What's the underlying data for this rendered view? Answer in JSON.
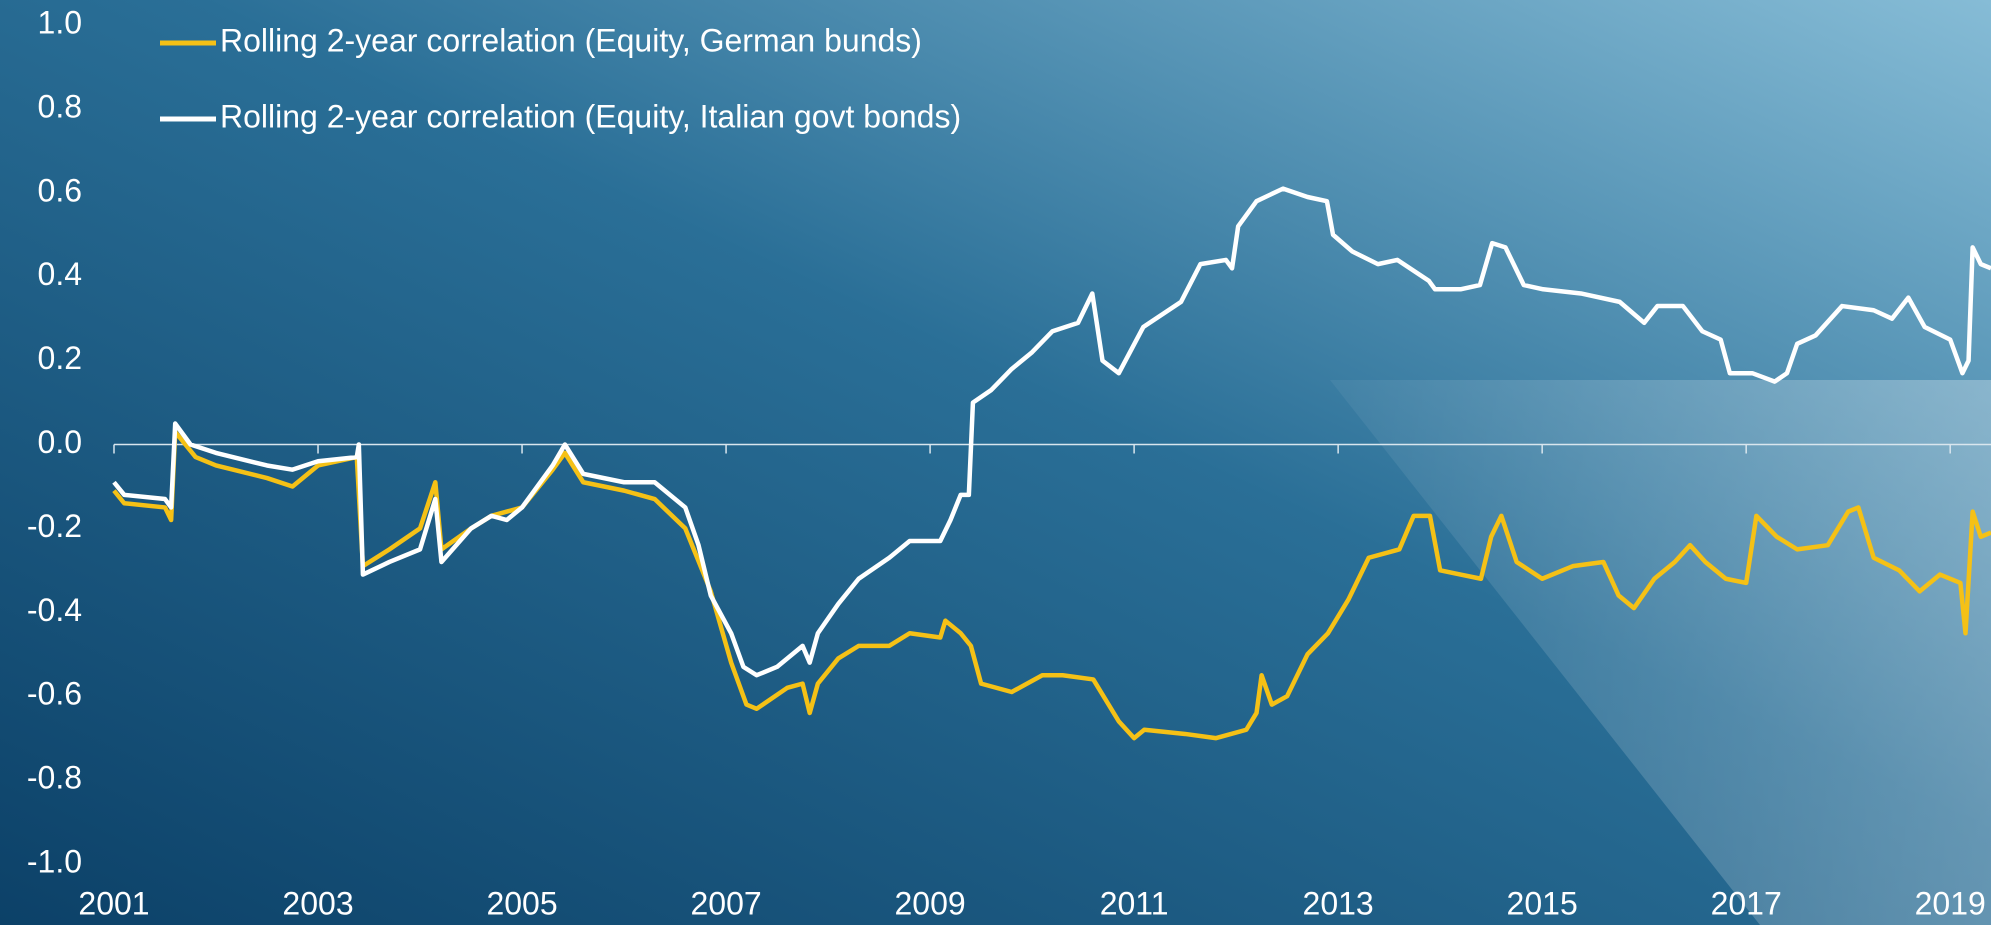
{
  "chart_data": {
    "type": "line",
    "series": [
      {
        "name": "Rolling 2-year correlation (Equity, German bunds)",
        "color": "#f5c116",
        "x": [
          2001.0,
          2001.1,
          2001.5,
          2001.56,
          2001.6,
          2001.8,
          2002.0,
          2002.5,
          2002.75,
          2003.0,
          2003.38,
          2003.44,
          2003.7,
          2004.0,
          2004.15,
          2004.21,
          2004.5,
          2004.7,
          2005.0,
          2005.3,
          2005.42,
          2005.6,
          2006.0,
          2006.3,
          2006.6,
          2006.85,
          2007.05,
          2007.2,
          2007.3,
          2007.6,
          2007.75,
          2007.82,
          2007.9,
          2008.1,
          2008.3,
          2008.6,
          2008.8,
          2009.1,
          2009.15,
          2009.3,
          2009.4,
          2009.5,
          2009.8,
          2010.1,
          2010.3,
          2010.6,
          2010.85,
          2011.0,
          2011.1,
          2011.5,
          2011.8,
          2012.1,
          2012.2,
          2012.25,
          2012.35,
          2012.5,
          2012.7,
          2012.9,
          2013.1,
          2013.3,
          2013.6,
          2013.74,
          2013.9,
          2014.0,
          2014.2,
          2014.4,
          2014.5,
          2014.6,
          2014.75,
          2015.0,
          2015.3,
          2015.6,
          2015.75,
          2015.9,
          2016.1,
          2016.3,
          2016.45,
          2016.6,
          2016.8,
          2017.0,
          2017.1,
          2017.3,
          2017.5,
          2017.8,
          2018.0,
          2018.1,
          2018.25,
          2018.5,
          2018.7,
          2018.9,
          2019.1,
          2019.15,
          2019.22,
          2019.3,
          2019.4
        ],
        "values": [
          -0.11,
          -0.14,
          -0.15,
          -0.18,
          0.03,
          -0.03,
          -0.05,
          -0.08,
          -0.1,
          -0.05,
          -0.03,
          -0.29,
          -0.25,
          -0.2,
          -0.09,
          -0.25,
          -0.2,
          -0.17,
          -0.15,
          -0.06,
          -0.02,
          -0.09,
          -0.11,
          -0.13,
          -0.2,
          -0.35,
          -0.52,
          -0.62,
          -0.63,
          -0.58,
          -0.57,
          -0.64,
          -0.57,
          -0.51,
          -0.48,
          -0.48,
          -0.45,
          -0.46,
          -0.42,
          -0.45,
          -0.48,
          -0.57,
          -0.59,
          -0.55,
          -0.55,
          -0.56,
          -0.66,
          -0.7,
          -0.68,
          -0.69,
          -0.7,
          -0.68,
          -0.64,
          -0.55,
          -0.62,
          -0.6,
          -0.5,
          -0.45,
          -0.37,
          -0.27,
          -0.25,
          -0.17,
          -0.17,
          -0.3,
          -0.31,
          -0.32,
          -0.22,
          -0.17,
          -0.28,
          -0.32,
          -0.29,
          -0.28,
          -0.36,
          -0.39,
          -0.32,
          -0.28,
          -0.24,
          -0.28,
          -0.32,
          -0.33,
          -0.17,
          -0.22,
          -0.25,
          -0.24,
          -0.16,
          -0.15,
          -0.27,
          -0.3,
          -0.35,
          -0.31,
          -0.33,
          -0.45,
          -0.16,
          -0.22,
          -0.21
        ]
      },
      {
        "name": "Rolling 2-year correlation (Equity, Italian govt bonds)",
        "color": "#ffffff",
        "x": [
          2001.0,
          2001.1,
          2001.5,
          2001.56,
          2001.6,
          2001.75,
          2002.0,
          2002.5,
          2002.75,
          2003.0,
          2003.38,
          2003.4,
          2003.44,
          2003.7,
          2004.0,
          2004.15,
          2004.21,
          2004.5,
          2004.7,
          2004.85,
          2005.0,
          2005.3,
          2005.42,
          2005.6,
          2006.0,
          2006.3,
          2006.6,
          2006.73,
          2006.85,
          2007.05,
          2007.17,
          2007.3,
          2007.5,
          2007.75,
          2007.82,
          2007.9,
          2008.1,
          2008.3,
          2008.6,
          2008.8,
          2009.1,
          2009.2,
          2009.3,
          2009.38,
          2009.42,
          2009.6,
          2009.8,
          2010.0,
          2010.2,
          2010.45,
          2010.59,
          2010.69,
          2010.85,
          2011.09,
          2011.46,
          2011.65,
          2011.9,
          2011.96,
          2012.02,
          2012.2,
          2012.46,
          2012.7,
          2012.89,
          2012.95,
          2013.14,
          2013.39,
          2013.58,
          2013.89,
          2013.95,
          2014.2,
          2014.39,
          2014.51,
          2014.64,
          2014.82,
          2015.01,
          2015.38,
          2015.76,
          2016.0,
          2016.13,
          2016.38,
          2016.57,
          2016.75,
          2016.84,
          2017.06,
          2017.28,
          2017.4,
          2017.5,
          2017.68,
          2017.94,
          2018.25,
          2018.43,
          2018.59,
          2018.75,
          2019.0,
          2019.12,
          2019.18,
          2019.22,
          2019.3,
          2019.4
        ],
        "values": [
          -0.09,
          -0.12,
          -0.13,
          -0.15,
          0.05,
          0.0,
          -0.02,
          -0.05,
          -0.06,
          -0.04,
          -0.03,
          0.0,
          -0.31,
          -0.28,
          -0.25,
          -0.13,
          -0.28,
          -0.2,
          -0.17,
          -0.18,
          -0.15,
          -0.05,
          0.0,
          -0.07,
          -0.09,
          -0.09,
          -0.15,
          -0.24,
          -0.36,
          -0.45,
          -0.53,
          -0.55,
          -0.53,
          -0.48,
          -0.52,
          -0.45,
          -0.38,
          -0.32,
          -0.27,
          -0.23,
          -0.23,
          -0.18,
          -0.12,
          -0.12,
          0.1,
          0.13,
          0.18,
          0.22,
          0.27,
          0.29,
          0.36,
          0.2,
          0.17,
          0.28,
          0.34,
          0.43,
          0.44,
          0.42,
          0.52,
          0.58,
          0.61,
          0.59,
          0.58,
          0.5,
          0.46,
          0.43,
          0.44,
          0.39,
          0.37,
          0.37,
          0.38,
          0.48,
          0.47,
          0.38,
          0.37,
          0.36,
          0.34,
          0.29,
          0.33,
          0.33,
          0.27,
          0.25,
          0.17,
          0.17,
          0.15,
          0.17,
          0.24,
          0.26,
          0.33,
          0.32,
          0.3,
          0.35,
          0.28,
          0.25,
          0.17,
          0.2,
          0.47,
          0.43,
          0.42
        ]
      }
    ],
    "xlim": [
      2001,
      2019.4
    ],
    "xticks": [
      2001,
      2003,
      2005,
      2007,
      2009,
      2011,
      2013,
      2015,
      2017,
      2019
    ],
    "ylim": [
      -1,
      1
    ],
    "yticks": [
      {
        "value": -1,
        "label": "-1.0"
      },
      -0.8,
      -0.6,
      -0.4,
      -0.2,
      {
        "value": 0,
        "label": "0.0"
      },
      0.2,
      0.4,
      0.6,
      0.8,
      {
        "value": 1,
        "label": "1.0"
      }
    ],
    "grid": false
  }
}
